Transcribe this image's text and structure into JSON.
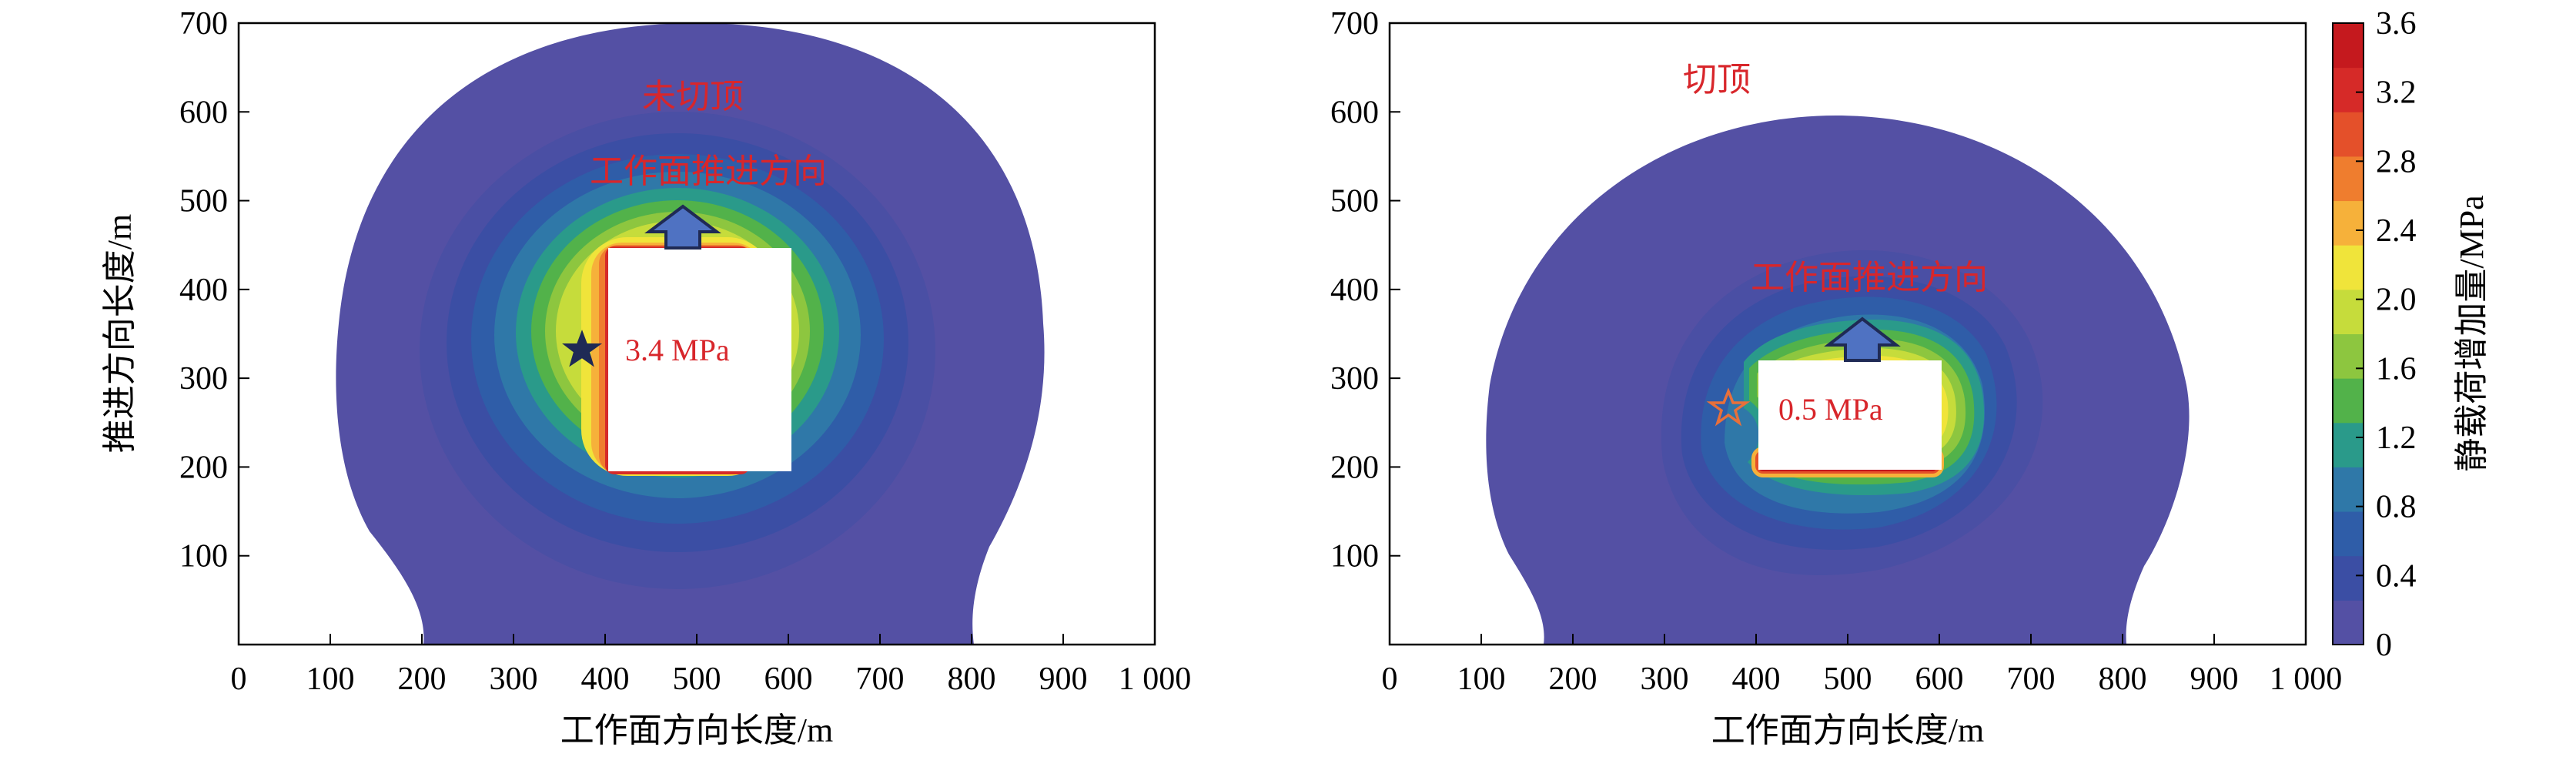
{
  "colors": {
    "background_field": "#5450a4",
    "frame": "#000000",
    "annotation_text": "#d8262b",
    "scale": [
      "#5450a4",
      "#3b4ea4",
      "#2f5da8",
      "#2f78a8",
      "#2a9a8a",
      "#52b24a",
      "#8dc63f",
      "#c6dc3b",
      "#f0e43a",
      "#f6b13a",
      "#ef7d2e",
      "#e4502a",
      "#d62a28",
      "#c5191e"
    ]
  },
  "chart_data": [
    {
      "type": "heatmap",
      "panel": "left",
      "xlabel": "工作面方向长度/m",
      "ylabel": "推进方向长度/m",
      "xlim": [
        0,
        1000
      ],
      "ylim": [
        0,
        700
      ],
      "x_ticks": [
        "0",
        "100",
        "200",
        "300",
        "400",
        "500",
        "600",
        "700",
        "800",
        "900",
        "1 000"
      ],
      "y_ticks": [
        "100",
        "200",
        "300",
        "400",
        "500",
        "600",
        "700"
      ],
      "goaf": {
        "x": [
          400,
          600
        ],
        "y": [
          200,
          450
        ]
      },
      "star": {
        "x": 375,
        "y": 330,
        "color": "#1f2a55",
        "filled": true
      },
      "arrow": {
        "x": 485,
        "y_base": 450,
        "y_tip": 490
      },
      "peak_label": "3.4 MPa",
      "top_label": "未切顶",
      "direction_label": "工作面推进方向",
      "peak_value_mpa": 3.4,
      "influence_boundary": "bell shape, x 210–800 at y=0, widens to x 120–880 near y=330, top at y≈700"
    },
    {
      "type": "heatmap",
      "panel": "right",
      "xlabel": "工作面方向长度/m",
      "ylabel": "",
      "xlim": [
        0,
        1000
      ],
      "ylim": [
        0,
        700
      ],
      "x_ticks": [
        "0",
        "100",
        "200",
        "300",
        "400",
        "500",
        "600",
        "700",
        "800",
        "900",
        "1 000"
      ],
      "y_ticks": [
        "100",
        "200",
        "300",
        "400",
        "500",
        "600",
        "700"
      ],
      "goaf": {
        "x": [
          400,
          600
        ],
        "y": [
          200,
          325
        ]
      },
      "star": {
        "x": 370,
        "y": 268,
        "color": "#e8703a",
        "filled": false
      },
      "arrow": {
        "x": 505,
        "y_base": 325,
        "y_tip": 365
      },
      "peak_label": "0.5 MPa",
      "top_label": "切顶",
      "direction_label": "工作面推进方向",
      "peak_value_mpa": 0.5,
      "influence_boundary": "bell shape, x 170–805 at y=0, widens to x 110–880 near y=250, top at y≈600"
    }
  ],
  "colorbar": {
    "label": "静载荷增加量/MPa",
    "ticks": [
      "0",
      "0.4",
      "0.8",
      "1.2",
      "1.6",
      "2.0",
      "2.4",
      "2.8",
      "3.2",
      "3.6"
    ],
    "range": [
      0,
      3.6
    ]
  }
}
